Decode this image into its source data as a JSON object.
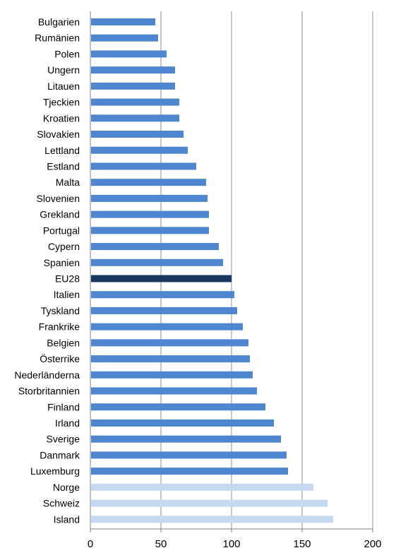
{
  "chart_data": {
    "type": "bar",
    "orientation": "horizontal",
    "categories": [
      "Bulgarien",
      "Rumänien",
      "Polen",
      "Ungern",
      "Litauen",
      "Tjeckien",
      "Kroatien",
      "Slovakien",
      "Lettland",
      "Estland",
      "Malta",
      "Slovenien",
      "Grekland",
      "Portugal",
      "Cypern",
      "Spanien",
      "EU28",
      "Italien",
      "Tyskland",
      "Frankrike",
      "Belgien",
      "Österrike",
      "Nederländerna",
      "Storbritannien",
      "Finland",
      "Irland",
      "Sverige",
      "Danmark",
      "Luxemburg",
      "Norge",
      "Schweiz",
      "Island"
    ],
    "values": [
      46,
      48,
      54,
      60,
      60,
      63,
      63,
      66,
      69,
      75,
      82,
      83,
      84,
      84,
      91,
      94,
      100,
      102,
      104,
      108,
      112,
      113,
      115,
      118,
      124,
      130,
      135,
      139,
      140,
      158,
      168,
      172
    ],
    "groups": [
      "eu",
      "eu",
      "eu",
      "eu",
      "eu",
      "eu",
      "eu",
      "eu",
      "eu",
      "eu",
      "eu",
      "eu",
      "eu",
      "eu",
      "eu",
      "eu",
      "total",
      "eu",
      "eu",
      "eu",
      "eu",
      "eu",
      "eu",
      "eu",
      "eu",
      "eu",
      "eu",
      "eu",
      "eu",
      "non-eu",
      "non-eu",
      "non-eu"
    ],
    "colors": {
      "eu": "#4f86d0",
      "total": "#17375e",
      "non-eu": "#c6d9f1"
    },
    "xlim": [
      0,
      200
    ],
    "xticks": [
      0,
      50,
      100,
      150,
      200
    ],
    "title": "",
    "xlabel": "",
    "ylabel": "",
    "grid": "vertical"
  }
}
